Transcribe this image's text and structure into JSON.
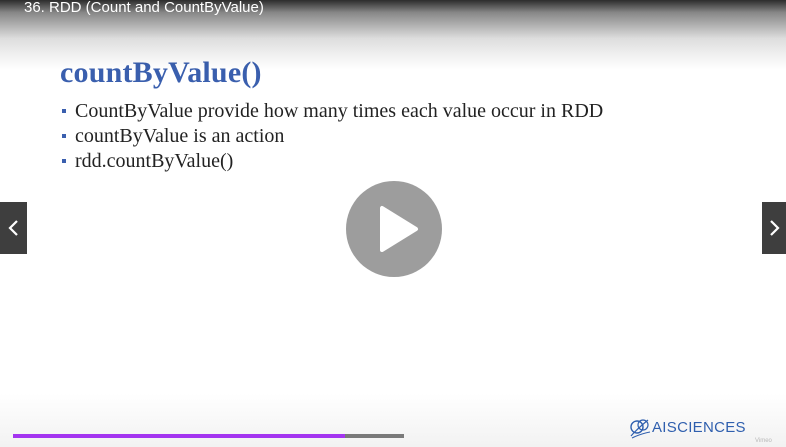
{
  "player": {
    "video_title": "36. RDD (Count and CountByValue)",
    "progress_fraction": 0.85,
    "accent_color": "#a435f0",
    "play_icon": "play-icon",
    "prev_icon": "chevron-left-icon",
    "next_icon": "chevron-right-icon"
  },
  "slide": {
    "title": "countByValue()",
    "bullets": [
      "CountByValue provide how many times each value occur in RDD",
      "countByValue is an action",
      "rdd.countByValue()"
    ],
    "title_color": "#3a5fae"
  },
  "logo": {
    "text": "AISCIENCES",
    "icon": "ai-sciences-logo-icon"
  },
  "watermark": {
    "text": "Vimeo"
  }
}
